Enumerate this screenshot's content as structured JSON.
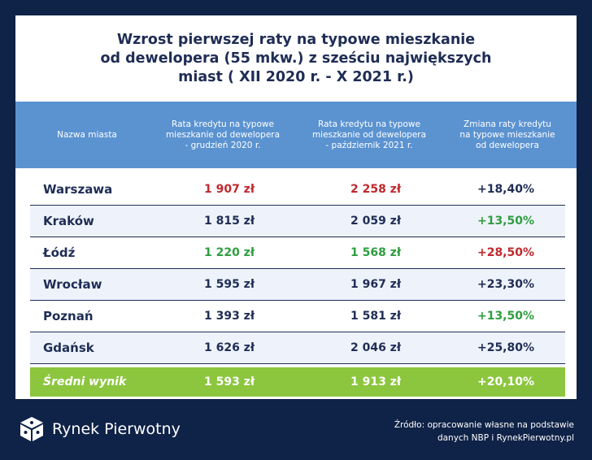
{
  "title": {
    "line1": "Wzrost pierwszej raty na typowe mieszkanie",
    "line2": "od dewelopera (55 mkw.) z sześciu największych",
    "line3": "miast ( XII 2020 r. - X 2021 r.)"
  },
  "chart_data": {
    "type": "table",
    "title": "Wzrost pierwszej raty na typowe mieszkanie od dewelopera (55 mkw.) z sześciu największych miast ( XII 2020 r. - X 2021 r.)",
    "columns": [
      "Nazwa miasta",
      "Rata kredytu na typowe mieszkanie od dewelopera - grudzień 2020 r.",
      "Rata kredytu na typowe mieszkanie od dewelopera - październik 2021 r.",
      "Zmiana raty kredytu na typowe mieszkanie od dewelopera"
    ],
    "rows": [
      {
        "city": "Warszawa",
        "dec2020": "1 907 zł",
        "oct2021": "2 258 zł",
        "change": "+18,40%",
        "color_dec": "#c0282d",
        "color_oct": "#c0282d",
        "color_change": "#1f2d55"
      },
      {
        "city": "Kraków",
        "dec2020": "1 815 zł",
        "oct2021": "2 059 zł",
        "change": "+13,50%",
        "color_dec": "#1f2d55",
        "color_oct": "#1f2d55",
        "color_change": "#2e9e3f"
      },
      {
        "city": "Łódź",
        "dec2020": "1 220 zł",
        "oct2021": "1 568 zł",
        "change": "+28,50%",
        "color_dec": "#2e9e3f",
        "color_oct": "#2e9e3f",
        "color_change": "#c0282d"
      },
      {
        "city": "Wrocław",
        "dec2020": "1 595 zł",
        "oct2021": "1 967 zł",
        "change": "+23,30%",
        "color_dec": "#1f2d55",
        "color_oct": "#1f2d55",
        "color_change": "#1f2d55"
      },
      {
        "city": "Poznań",
        "dec2020": "1 393 zł",
        "oct2021": "1 581 zł",
        "change": "+13,50%",
        "color_dec": "#1f2d55",
        "color_oct": "#1f2d55",
        "color_change": "#2e9e3f"
      },
      {
        "city": "Gdańsk",
        "dec2020": "1 626 zł",
        "oct2021": "2 046 zł",
        "change": "+25,80%",
        "color_dec": "#1f2d55",
        "color_oct": "#1f2d55",
        "color_change": "#1f2d55"
      }
    ],
    "summary": {
      "city": "Średni wynik",
      "dec2020": "1 593 zł",
      "oct2021": "1 913 zł",
      "change": "+20,10%"
    }
  },
  "headers": {
    "h0": "Nazwa miasta",
    "h1": [
      "Rata kredytu na typowe",
      "mieszkanie od dewelopera",
      "- grudzień 2020 r."
    ],
    "h2": [
      "Rata kredytu na typowe",
      "mieszkanie od dewelopera",
      "- październik 2021 r."
    ],
    "h3": [
      "Zmiana raty kredytu",
      "na typowe mieszkanie",
      "od dewelopera"
    ]
  },
  "footer": {
    "brand": "Rynek Pierwotny",
    "logo_icon": "cube-logo-icon",
    "source_line1": "Źródło: opracowanie własne na podstawie",
    "source_line2": "danych NBP i RynekPierwotny.pl"
  },
  "colors": {
    "background": "#0f2247",
    "header": "#5b93d1",
    "summary": "#8cc63f",
    "text": "#1f2d55",
    "red": "#c0282d",
    "green": "#2e9e3f"
  }
}
